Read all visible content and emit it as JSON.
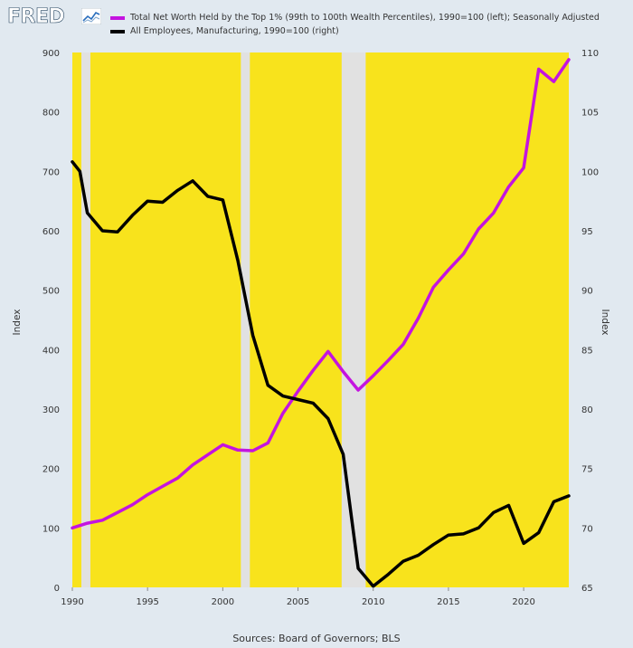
{
  "header": {
    "logo_text": "FRED"
  },
  "source_text": "Sources: Board of Governors; BLS",
  "colors": {
    "background": "#e1e9f0",
    "plot_fill": "#f8e31c",
    "recession": "#e1e1e1",
    "series1": "#c414e0",
    "series2": "#000000"
  },
  "chart_data": {
    "type": "line",
    "xlim": [
      1990,
      2023
    ],
    "x_ticks": [
      1990,
      1995,
      2000,
      2005,
      2010,
      2015,
      2020
    ],
    "y_left": {
      "label": "Index",
      "lim": [
        0,
        900
      ],
      "ticks": [
        0,
        100,
        200,
        300,
        400,
        500,
        600,
        700,
        800,
        900
      ]
    },
    "y_right": {
      "label": "Index",
      "lim": [
        65,
        110
      ],
      "ticks": [
        65,
        70,
        75,
        80,
        85,
        90,
        95,
        100,
        105,
        110
      ]
    },
    "recession_gaps": [
      [
        1990.6,
        1991.2
      ],
      [
        2001.2,
        2001.8
      ],
      [
        2007.9,
        2009.5
      ]
    ],
    "series": [
      {
        "name": "Total Net Worth Held by the Top 1% (99th to 100th Wealth Percentiles), 1990=100 (left); Seasonally Adjusted",
        "axis": "left",
        "color": "#c414e0",
        "x": [
          1990,
          1991,
          1992,
          1993,
          1994,
          1995,
          1996,
          1997,
          1998,
          1999,
          2000,
          2001,
          2002,
          2003,
          2004,
          2005,
          2006,
          2007,
          2008,
          2009,
          2010,
          2011,
          2012,
          2013,
          2014,
          2015,
          2016,
          2017,
          2018,
          2019,
          2020,
          2021,
          2022,
          2023
        ],
        "values": [
          100,
          108,
          113,
          126,
          139,
          156,
          170,
          184,
          206,
          223,
          240,
          231,
          230,
          243,
          293,
          330,
          365,
          397,
          363,
          332,
          356,
          382,
          409,
          453,
          505,
          534,
          561,
          603,
          630,
          674,
          706,
          872,
          851,
          888
        ]
      },
      {
        "name": "All Employees, Manufacturing, 1990=100 (right)",
        "axis": "right",
        "color": "#000000",
        "x": [
          1990,
          1990.5,
          1991,
          1992,
          1993,
          1994,
          1995,
          1996,
          1997,
          1998,
          1999,
          2000,
          2001,
          2002,
          2003,
          2004,
          2005,
          2006,
          2007,
          2008,
          2009,
          2010,
          2011,
          2012,
          2013,
          2014,
          2015,
          2016,
          2017,
          2018,
          2019,
          2020,
          2021,
          2022,
          2023
        ],
        "values": [
          100.8,
          100,
          96.5,
          95,
          94.9,
          96.3,
          97.5,
          97.4,
          98.4,
          99.2,
          97.9,
          97.6,
          92.5,
          86.2,
          82,
          81.1,
          80.8,
          80.5,
          79.2,
          76.2,
          66.6,
          65.1,
          66.1,
          67.2,
          67.7,
          68.6,
          69.4,
          69.5,
          70,
          71.3,
          71.9,
          68.7,
          69.6,
          72.2,
          72.7
        ]
      }
    ]
  }
}
